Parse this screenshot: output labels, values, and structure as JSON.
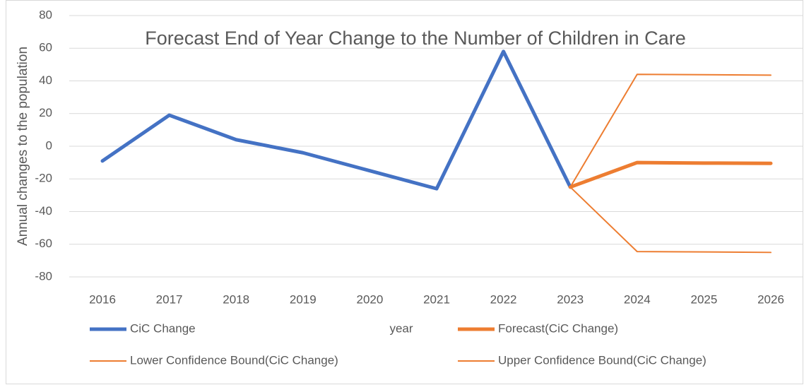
{
  "chart_data": {
    "type": "line",
    "title": "Forecast End of Year Change to the Number of Children in Care",
    "x_label": "year",
    "y_label": "Annual changes to the population",
    "categories": [
      "2016",
      "2017",
      "2018",
      "2019",
      "2020",
      "2021",
      "2022",
      "2023",
      "2024",
      "2025",
      "2026"
    ],
    "series": [
      {
        "name": "CiC Change",
        "color": "#4472c4",
        "values": [
          -9,
          19,
          4,
          -4,
          -15,
          -26,
          58,
          -25,
          null,
          null,
          null
        ]
      },
      {
        "name": "Forecast(CiC Change)",
        "color": "#ed7d31",
        "values": [
          null,
          null,
          null,
          null,
          null,
          null,
          null,
          -25,
          -10,
          -10.3,
          -10.5
        ]
      },
      {
        "name": "Lower Confidence Bound(CiC Change)",
        "color": "#ed7d31",
        "values": [
          null,
          null,
          null,
          null,
          null,
          null,
          null,
          -25,
          44,
          43.8,
          43.5
        ]
      },
      {
        "name": "Upper Confidence Bound(CiC Change)",
        "color": "#ed7d31",
        "values": [
          null,
          null,
          null,
          null,
          null,
          null,
          null,
          -25,
          -64.5,
          -64.7,
          -65
        ]
      }
    ],
    "ylim": [
      -80,
      80
    ],
    "yticks": [
      -80,
      -60,
      -40,
      -20,
      0,
      20,
      40,
      60,
      80
    ],
    "grid": true,
    "legend": "bottom"
  }
}
